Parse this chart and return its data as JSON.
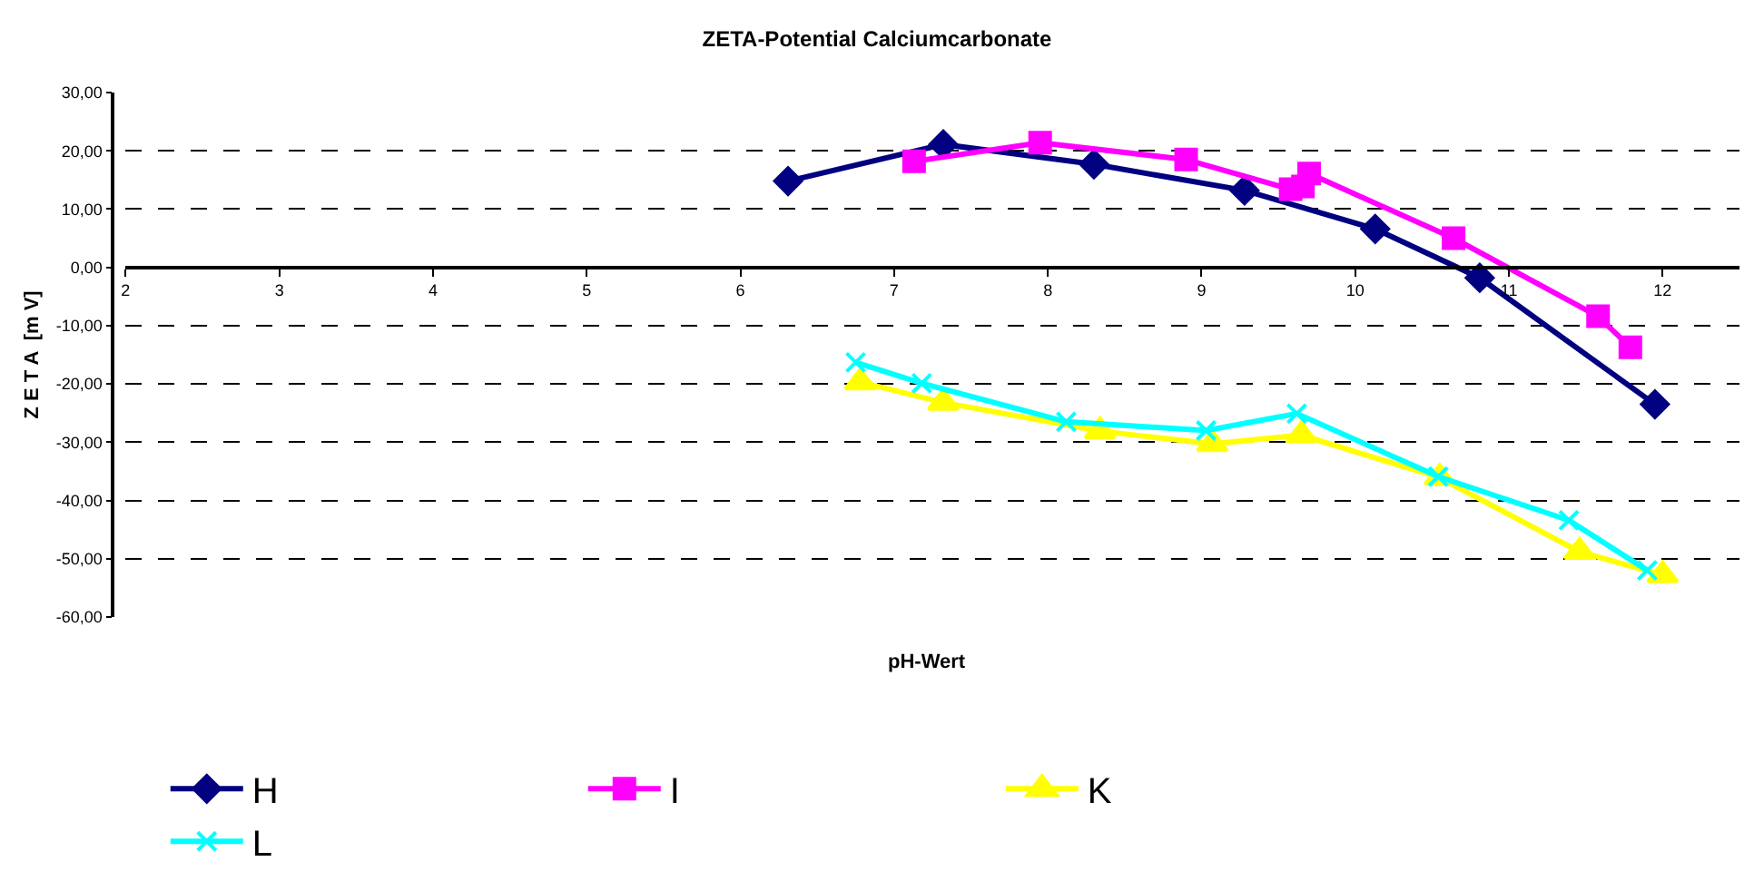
{
  "chart_data": {
    "type": "line",
    "title": "ZETA-Potential Calciumcarbonate",
    "xlabel": "pH-Wert",
    "ylabel": "Z E T A  [m V]",
    "xlim": [
      2,
      12.5
    ],
    "xticks": [
      2,
      3,
      4,
      5,
      6,
      7,
      8,
      9,
      10,
      11,
      12
    ],
    "ylim": [
      -60,
      30
    ],
    "yticks": [
      {
        "value": -60,
        "label": "-60,00"
      },
      {
        "value": -50,
        "label": "-50,00"
      },
      {
        "value": -40,
        "label": "-40,00"
      },
      {
        "value": -30,
        "label": "-30,00"
      },
      {
        "value": -20,
        "label": "-20,00"
      },
      {
        "value": -10,
        "label": "-10,00"
      },
      {
        "value": 0,
        "label": "0,00"
      },
      {
        "value": 10,
        "label": "10,00"
      },
      {
        "value": 20,
        "label": "20,00"
      },
      {
        "value": 30,
        "label": "30,00"
      }
    ],
    "grid": "y",
    "legend": "bottom",
    "line_style": "solid",
    "series": [
      {
        "name": "H",
        "color": "#000080",
        "marker": "diamond",
        "x": [
          6.31,
          7.32,
          8.3,
          9.28,
          10.13,
          10.81,
          11.95
        ],
        "values": [
          14.8,
          21.1,
          17.7,
          13.2,
          6.6,
          -1.8,
          -23.5
        ]
      },
      {
        "name": "I",
        "color": "#ff00ff",
        "marker": "square",
        "x": [
          7.13,
          7.95,
          8.9,
          9.58,
          9.66,
          9.7,
          10.64,
          11.58,
          11.79
        ],
        "values": [
          18.2,
          21.4,
          18.5,
          13.4,
          13.9,
          16.1,
          5.0,
          -8.4,
          -13.7
        ]
      },
      {
        "name": "K",
        "color": "#ffff00",
        "marker": "triangle",
        "x": [
          6.78,
          7.32,
          8.34,
          9.07,
          9.65,
          10.55,
          11.46,
          12.0
        ],
        "values": [
          -19.7,
          -23.2,
          -28.1,
          -30.3,
          -28.8,
          -36.1,
          -48.8,
          -52.8
        ]
      },
      {
        "name": "L",
        "color": "#00ffff",
        "marker": "cross",
        "x": [
          6.75,
          7.18,
          8.12,
          9.03,
          9.62,
          10.54,
          11.39,
          11.9
        ],
        "values": [
          -16.3,
          -19.9,
          -26.5,
          -28.0,
          -25.1,
          -35.9,
          -43.4,
          -52.0
        ]
      }
    ]
  }
}
